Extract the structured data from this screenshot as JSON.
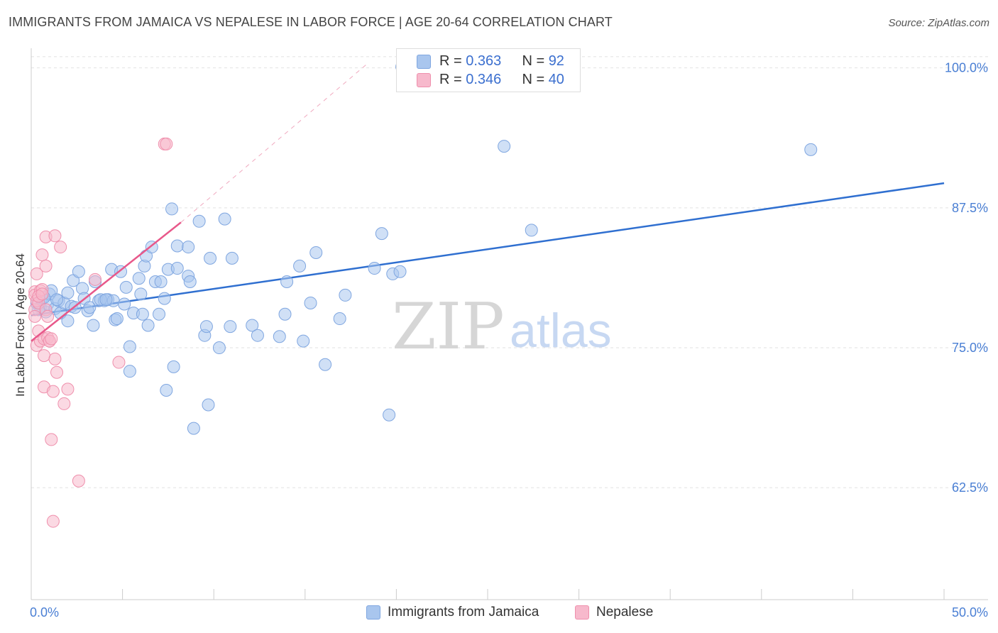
{
  "title": "IMMIGRANTS FROM JAMAICA VS NEPALESE IN LABOR FORCE | AGE 20-64 CORRELATION CHART",
  "source": "Source: ZipAtlas.com",
  "watermark": {
    "zip": "ZIP",
    "atlas": "atlas"
  },
  "legend": {
    "r_label": "R = ",
    "n_label": "N = ",
    "series": [
      {
        "r": "0.363",
        "n": "92"
      },
      {
        "r": "0.346",
        "n": "40"
      }
    ]
  },
  "colors": {
    "jamaica_fill": "#a9c6ee",
    "jamaica_stroke": "#7fa6e0",
    "jamaica_line": "#2f6fd0",
    "nepalese_fill": "#f7b9cc",
    "nepalese_stroke": "#ef8fac",
    "nepalese_line": "#e8588a",
    "grid": "#e2e2e2",
    "tick_label": "#4a7fd4"
  },
  "chart_data": {
    "type": "scatter",
    "title": "IMMIGRANTS FROM JAMAICA VS NEPALESE IN LABOR FORCE | AGE 20-64 CORRELATION CHART",
    "xlabel": "",
    "ylabel": "In Labor Force | Age 20-64",
    "xlim": [
      0,
      50
    ],
    "ylim": [
      52.5,
      101.5
    ],
    "x_tick_labels": [
      "0.0%",
      "50.0%"
    ],
    "y_ticks": [
      100.0,
      87.5,
      75.0,
      62.5
    ],
    "y_tick_labels": [
      "100.0%",
      "87.5%",
      "75.0%",
      "62.5%"
    ],
    "grid": true,
    "legend_position": "top-center",
    "series": [
      {
        "name": "Immigrants from Jamaica",
        "trend": {
          "x": [
            0,
            50
          ],
          "y": [
            77.9,
            89.7
          ]
        },
        "points": [
          [
            0.3,
            79.0
          ],
          [
            0.5,
            78.6
          ],
          [
            0.6,
            79.5
          ],
          [
            0.8,
            78.2
          ],
          [
            0.9,
            78.9
          ],
          [
            1.0,
            79.8
          ],
          [
            1.1,
            80.1
          ],
          [
            1.3,
            78.5
          ],
          [
            1.5,
            79.2
          ],
          [
            1.6,
            78.1
          ],
          [
            1.8,
            79.0
          ],
          [
            2.0,
            77.4
          ],
          [
            2.0,
            79.9
          ],
          [
            2.2,
            78.7
          ],
          [
            2.3,
            81.0
          ],
          [
            2.6,
            81.8
          ],
          [
            2.8,
            80.3
          ],
          [
            2.9,
            79.4
          ],
          [
            3.1,
            78.3
          ],
          [
            3.2,
            78.6
          ],
          [
            3.4,
            77.0
          ],
          [
            3.5,
            80.9
          ],
          [
            3.7,
            79.2
          ],
          [
            4.0,
            79.2
          ],
          [
            4.2,
            79.3
          ],
          [
            4.4,
            82.0
          ],
          [
            4.5,
            79.2
          ],
          [
            4.6,
            77.5
          ],
          [
            4.7,
            77.6
          ],
          [
            4.9,
            81.8
          ],
          [
            5.1,
            78.9
          ],
          [
            5.2,
            80.4
          ],
          [
            5.4,
            75.1
          ],
          [
            5.4,
            72.9
          ],
          [
            5.6,
            78.1
          ],
          [
            5.9,
            81.2
          ],
          [
            6.0,
            79.8
          ],
          [
            6.1,
            78.0
          ],
          [
            6.2,
            82.3
          ],
          [
            6.3,
            83.2
          ],
          [
            6.4,
            77.0
          ],
          [
            6.6,
            84.0
          ],
          [
            6.8,
            80.9
          ],
          [
            7.0,
            78.0
          ],
          [
            7.1,
            80.9
          ],
          [
            7.3,
            79.4
          ],
          [
            7.4,
            71.2
          ],
          [
            7.5,
            82.0
          ],
          [
            7.7,
            87.4
          ],
          [
            7.8,
            73.3
          ],
          [
            8.0,
            82.1
          ],
          [
            8.0,
            84.1
          ],
          [
            8.6,
            84.0
          ],
          [
            8.6,
            81.4
          ],
          [
            8.7,
            80.9
          ],
          [
            8.9,
            67.8
          ],
          [
            9.2,
            86.3
          ],
          [
            9.5,
            76.1
          ],
          [
            9.6,
            76.9
          ],
          [
            9.7,
            69.9
          ],
          [
            9.8,
            83.0
          ],
          [
            10.3,
            75.0
          ],
          [
            10.6,
            86.5
          ],
          [
            10.9,
            76.9
          ],
          [
            11.0,
            83.0
          ],
          [
            12.1,
            77.0
          ],
          [
            12.4,
            76.1
          ],
          [
            13.6,
            76.0
          ],
          [
            13.9,
            78.0
          ],
          [
            14.0,
            80.9
          ],
          [
            14.7,
            82.3
          ],
          [
            14.9,
            75.6
          ],
          [
            15.3,
            79.0
          ],
          [
            15.6,
            83.5
          ],
          [
            16.1,
            73.5
          ],
          [
            16.9,
            77.6
          ],
          [
            17.2,
            79.7
          ],
          [
            18.8,
            82.1
          ],
          [
            19.2,
            85.2
          ],
          [
            19.6,
            69.0
          ],
          [
            19.8,
            81.6
          ],
          [
            20.2,
            81.8
          ],
          [
            20.3,
            100.1
          ],
          [
            25.9,
            93.0
          ],
          [
            27.4,
            85.5
          ],
          [
            42.7,
            92.7
          ],
          [
            0.4,
            78.4
          ],
          [
            1.4,
            79.3
          ],
          [
            2.4,
            78.6
          ],
          [
            3.8,
            79.3
          ],
          [
            0.7,
            79.5
          ],
          [
            4.1,
            79.3
          ]
        ]
      },
      {
        "name": "Nepalese",
        "trend": {
          "x": [
            0,
            8.2
          ],
          "y": [
            75.6,
            86.2
          ]
        },
        "trend_extension": {
          "x": [
            8.2,
            18.5
          ],
          "y": [
            86.2,
            100.5
          ]
        },
        "points": [
          [
            0.2,
            80.0
          ],
          [
            0.2,
            79.7
          ],
          [
            0.2,
            78.4
          ],
          [
            0.2,
            77.8
          ],
          [
            0.3,
            79.2
          ],
          [
            0.3,
            75.2
          ],
          [
            0.3,
            81.6
          ],
          [
            0.4,
            79.0
          ],
          [
            0.4,
            76.5
          ],
          [
            0.5,
            80.1
          ],
          [
            0.5,
            75.6
          ],
          [
            0.6,
            80.2
          ],
          [
            0.6,
            83.3
          ],
          [
            0.7,
            75.8
          ],
          [
            0.7,
            74.3
          ],
          [
            0.7,
            71.5
          ],
          [
            0.8,
            84.9
          ],
          [
            0.8,
            82.3
          ],
          [
            0.8,
            78.4
          ],
          [
            0.9,
            77.8
          ],
          [
            0.9,
            75.9
          ],
          [
            1.0,
            75.6
          ],
          [
            1.0,
            75.6
          ],
          [
            1.1,
            66.8
          ],
          [
            1.1,
            75.8
          ],
          [
            1.2,
            71.1
          ],
          [
            1.2,
            59.5
          ],
          [
            1.3,
            85.0
          ],
          [
            1.3,
            74.0
          ],
          [
            1.4,
            72.8
          ],
          [
            1.6,
            84.0
          ],
          [
            1.8,
            70.0
          ],
          [
            2.0,
            71.3
          ],
          [
            2.6,
            63.1
          ],
          [
            3.5,
            81.1
          ],
          [
            4.8,
            73.7
          ],
          [
            7.3,
            93.2
          ],
          [
            7.4,
            93.2
          ],
          [
            0.4,
            79.6
          ],
          [
            0.6,
            79.8
          ]
        ]
      }
    ]
  },
  "bottom_legend": [
    "Immigrants from Jamaica",
    "Nepalese"
  ]
}
